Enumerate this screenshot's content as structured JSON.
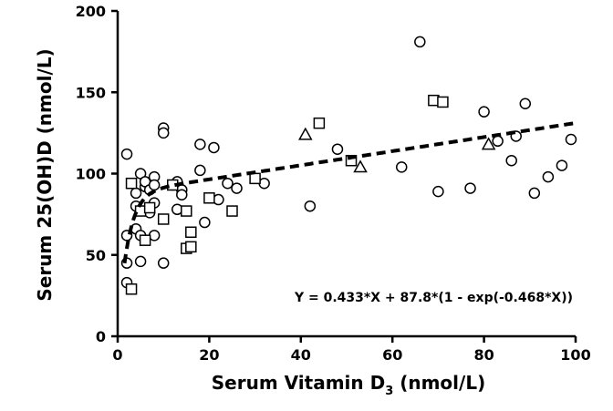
{
  "chart_data": {
    "type": "scatter",
    "xlabel_main": "Serum Vitamin D",
    "xlabel_sub": "3",
    "xlabel_unit": " (nmol/L)",
    "ylabel": "Serum 25(OH)D (nmol/L)",
    "xlim": [
      0,
      100
    ],
    "ylim": [
      0,
      200
    ],
    "x_ticks": [
      0,
      20,
      40,
      60,
      80,
      100
    ],
    "y_ticks": [
      0,
      50,
      100,
      150,
      200
    ],
    "x_tick_labels": [
      "0",
      "20",
      "40",
      "60",
      "80",
      "100"
    ],
    "y_tick_labels": [
      "0",
      "50",
      "100",
      "150",
      "200"
    ],
    "grid": false,
    "annotation": "Y = 0.433*X + 87.8*(1 - exp(-0.468*X))",
    "fit": {
      "a": 0.433,
      "b": 87.8,
      "c": 0.468,
      "style": "dashed"
    },
    "series": [
      {
        "marker": "circle",
        "points": [
          [
            2,
            112
          ],
          [
            2,
            62
          ],
          [
            2,
            45
          ],
          [
            2,
            33
          ],
          [
            4,
            80
          ],
          [
            4,
            66
          ],
          [
            4,
            88
          ],
          [
            5,
            100
          ],
          [
            5,
            62
          ],
          [
            5,
            46
          ],
          [
            6,
            92
          ],
          [
            6,
            95
          ],
          [
            7,
            76
          ],
          [
            7,
            90
          ],
          [
            8,
            98
          ],
          [
            8,
            93
          ],
          [
            8,
            82
          ],
          [
            8,
            62
          ],
          [
            10,
            128
          ],
          [
            10,
            125
          ],
          [
            10,
            45
          ],
          [
            12,
            93
          ],
          [
            13,
            95
          ],
          [
            13,
            78
          ],
          [
            14,
            90
          ],
          [
            14,
            87
          ],
          [
            18,
            118
          ],
          [
            18,
            102
          ],
          [
            19,
            70
          ],
          [
            21,
            116
          ],
          [
            22,
            84
          ],
          [
            24,
            94
          ],
          [
            26,
            91
          ],
          [
            32,
            94
          ],
          [
            42,
            80
          ],
          [
            48,
            115
          ],
          [
            62,
            104
          ],
          [
            66,
            181
          ],
          [
            70,
            89
          ],
          [
            77,
            91
          ],
          [
            80,
            138
          ],
          [
            83,
            120
          ],
          [
            86,
            108
          ],
          [
            87,
            123
          ],
          [
            89,
            143
          ],
          [
            91,
            88
          ],
          [
            94,
            98
          ],
          [
            97,
            105
          ],
          [
            99,
            121
          ]
        ]
      },
      {
        "marker": "square",
        "points": [
          [
            3,
            94
          ],
          [
            3,
            29
          ],
          [
            5,
            77
          ],
          [
            6,
            59
          ],
          [
            7,
            79
          ],
          [
            10,
            72
          ],
          [
            12,
            93
          ],
          [
            15,
            77
          ],
          [
            15,
            54
          ],
          [
            16,
            64
          ],
          [
            16,
            55
          ],
          [
            20,
            85
          ],
          [
            25,
            77
          ],
          [
            30,
            97
          ],
          [
            44,
            131
          ],
          [
            51,
            108
          ],
          [
            69,
            145
          ],
          [
            71,
            144
          ]
        ]
      },
      {
        "marker": "triangle",
        "points": [
          [
            41,
            124
          ],
          [
            53,
            104
          ],
          [
            81,
            118
          ]
        ]
      }
    ]
  }
}
